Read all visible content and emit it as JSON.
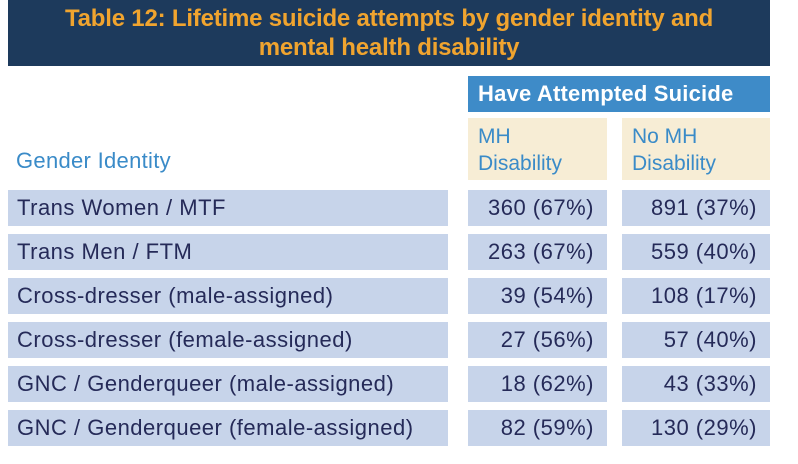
{
  "title": {
    "line1": "Table 12: Lifetime suicide attempts by gender identity and",
    "line2": "mental health disability",
    "full": "Table 12: Lifetime suicide attempts by gender identity and mental health disability"
  },
  "table": {
    "group_header": "Have Attempted Suicide",
    "row_header": "Gender Identity",
    "columns": [
      "MH Disability",
      "No MH Disability"
    ],
    "rows": [
      {
        "label": "Trans Women / MTF",
        "values": [
          "360 (67%)",
          "891 (37%)"
        ]
      },
      {
        "label": "Trans Men / FTM",
        "values": [
          "263 (67%)",
          "559 (40%)"
        ]
      },
      {
        "label": "Cross-dresser (male-assigned)",
        "values": [
          "39 (54%)",
          "108 (17%)"
        ]
      },
      {
        "label": "Cross-dresser (female-assigned)",
        "values": [
          "27 (56%)",
          "57 (40%)"
        ]
      },
      {
        "label": "GNC / Genderqueer (male-assigned)",
        "values": [
          "18 (62%)",
          "43 (33%)"
        ]
      },
      {
        "label": "GNC / Genderqueer (female-assigned)",
        "values": [
          "82 (59%)",
          "130 (29%)"
        ]
      }
    ]
  },
  "colors": {
    "banner_bg": "#1d3a5c",
    "title_text": "#f0a42f",
    "group_header_bg": "#3e8bc8",
    "group_header_text": "#ffffff",
    "column_header_bg": "#f7edd5",
    "accent_blue_text": "#3a8bc8",
    "row_bg": "#c7d4ea",
    "row_text": "#252a58",
    "page_bg": "#ffffff"
  },
  "chart_data": {
    "type": "table",
    "title": "Table 12: Lifetime suicide attempts by gender identity and mental health disability",
    "group_header": "Have Attempted Suicide",
    "row_dimension": "Gender Identity",
    "columns": [
      "MH Disability",
      "No MH Disability"
    ],
    "rows": [
      {
        "gender_identity": "Trans Women / MTF",
        "mh_disability_n": 360,
        "mh_disability_pct": 67,
        "no_mh_disability_n": 891,
        "no_mh_disability_pct": 37
      },
      {
        "gender_identity": "Trans Men / FTM",
        "mh_disability_n": 263,
        "mh_disability_pct": 67,
        "no_mh_disability_n": 559,
        "no_mh_disability_pct": 40
      },
      {
        "gender_identity": "Cross-dresser (male-assigned)",
        "mh_disability_n": 39,
        "mh_disability_pct": 54,
        "no_mh_disability_n": 108,
        "no_mh_disability_pct": 17
      },
      {
        "gender_identity": "Cross-dresser (female-assigned)",
        "mh_disability_n": 27,
        "mh_disability_pct": 56,
        "no_mh_disability_n": 57,
        "no_mh_disability_pct": 40
      },
      {
        "gender_identity": "GNC / Genderqueer (male-assigned)",
        "mh_disability_n": 18,
        "mh_disability_pct": 62,
        "no_mh_disability_n": 43,
        "no_mh_disability_pct": 33
      },
      {
        "gender_identity": "GNC / Genderqueer (female-assigned)",
        "mh_disability_n": 82,
        "mh_disability_pct": 59,
        "no_mh_disability_n": 130,
        "no_mh_disability_pct": 29
      }
    ]
  }
}
